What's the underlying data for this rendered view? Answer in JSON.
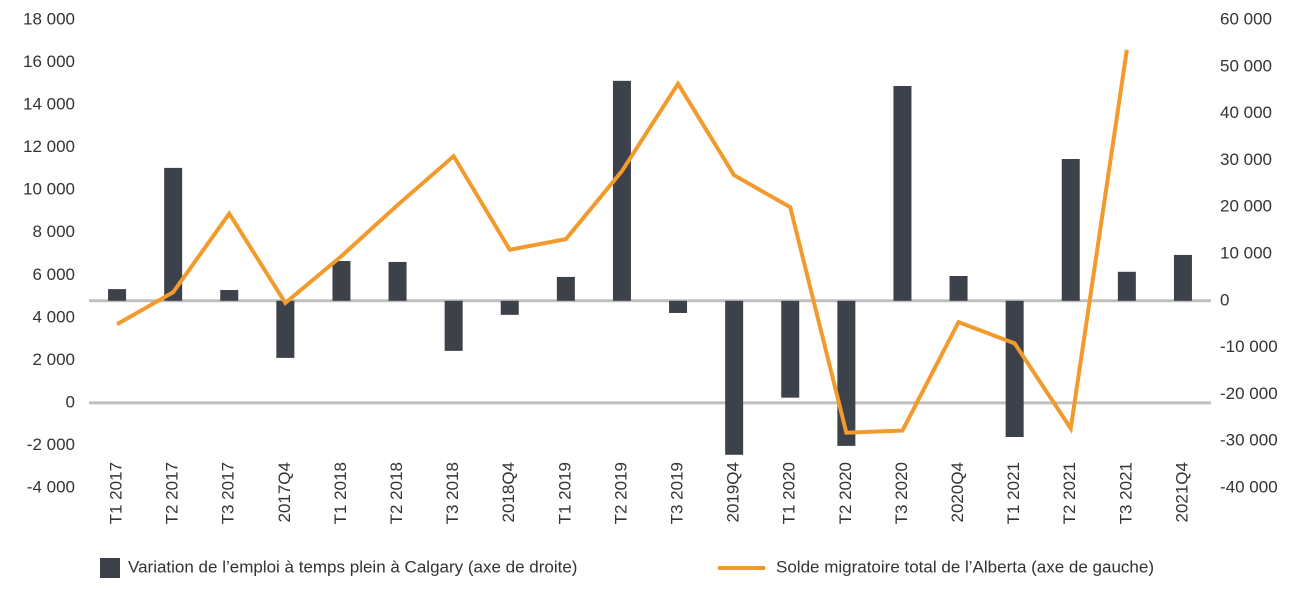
{
  "chart_data": {
    "type": "combo",
    "categories": [
      "T1 2017",
      "T2 2017",
      "T3 2017",
      "2017Q4",
      "T1 2018",
      "T2 2018",
      "T3 2018",
      "2018Q4",
      "T1 2019",
      "T2 2019",
      "T3 2019",
      "2019Q4",
      "T1 2020",
      "T2 2020",
      "T3 2020",
      "2020Q4",
      "T1 2021",
      "T2 2021",
      "T3 2021",
      "2021Q4"
    ],
    "series": [
      {
        "name": "Variation de l’emploi à temps plein à Calgary (axe de droite)",
        "type": "bar",
        "axis": "y2",
        "color": "#3d4149",
        "values": [
          2500,
          28400,
          2300,
          -12200,
          8500,
          8300,
          -10700,
          -3000,
          5100,
          47000,
          -2600,
          -32900,
          -20700,
          -31000,
          45900,
          5300,
          -29100,
          30300,
          6200,
          9800
        ]
      },
      {
        "name": "Solde migratoire total de l’Alberta (axe de gauche)",
        "type": "line",
        "axis": "y",
        "color": "#f39a2c",
        "values": [
          3700,
          5200,
          8900,
          4700,
          6900,
          9300,
          11600,
          7200,
          7700,
          10900,
          15000,
          10700,
          9200,
          -1400,
          -1300,
          3800,
          2800,
          -1200,
          16600,
          null
        ]
      }
    ],
    "ylim": [
      -4000,
      18000
    ],
    "yticks": [
      {
        "value": -4000,
        "label": "-4 000"
      },
      {
        "value": -2000,
        "label": "-2 000"
      },
      0,
      {
        "value": 2000,
        "label": "2 000"
      },
      {
        "value": 4000,
        "label": "4 000"
      },
      {
        "value": 6000,
        "label": "6 000"
      },
      {
        "value": 8000,
        "label": "8 000"
      },
      {
        "value": 10000,
        "label": "10 000"
      },
      {
        "value": 12000,
        "label": "12 000"
      },
      {
        "value": 14000,
        "label": "14 000"
      },
      {
        "value": 16000,
        "label": "16 000"
      },
      {
        "value": 18000,
        "label": "18 000"
      }
    ],
    "y2lim": [
      -40000,
      60000
    ],
    "y2ticks": [
      {
        "value": -40000,
        "label": "-40 000"
      },
      {
        "value": -30000,
        "label": "-30 000"
      },
      {
        "value": -20000,
        "label": "-20 000"
      },
      {
        "value": -10000,
        "label": "-10 000"
      },
      0,
      {
        "value": 10000,
        "label": "10 000"
      },
      {
        "value": 20000,
        "label": "20 000"
      },
      {
        "value": 30000,
        "label": "30 000"
      },
      {
        "value": 40000,
        "label": "40 000"
      },
      {
        "value": 50000,
        "label": "50 000"
      },
      {
        "value": 60000,
        "label": "60 000"
      }
    ],
    "grid": false,
    "legend": "bottom"
  }
}
